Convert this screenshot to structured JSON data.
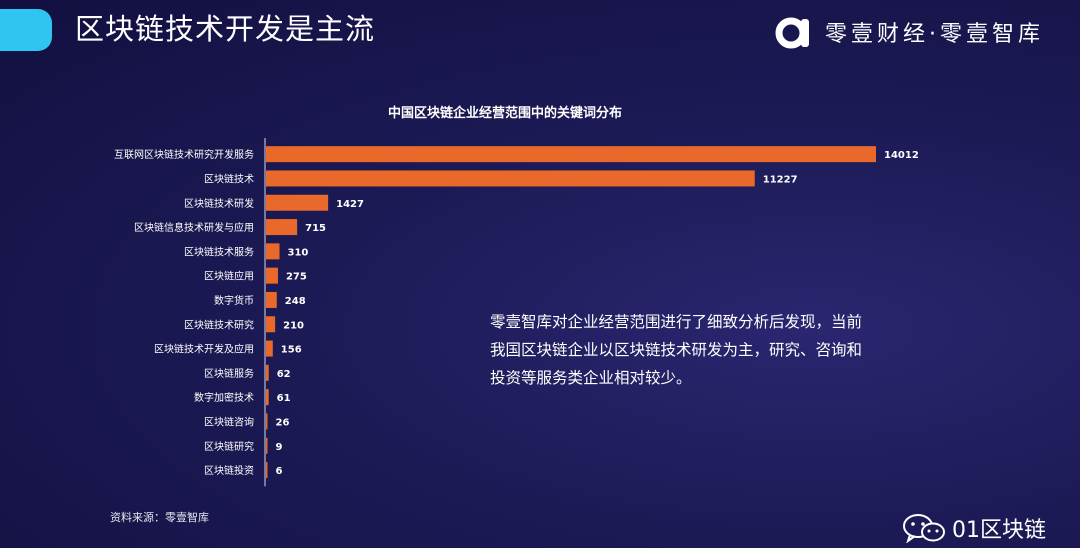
{
  "header": {
    "title": "区块链技术开发是主流",
    "brand": "零壹财经·零壹智库"
  },
  "chart_data": {
    "type": "bar",
    "orientation": "horizontal",
    "title": "中国区块链企业经营范围中的关键词分布",
    "categories": [
      "互联网区块链技术研究开发服务",
      "区块链技术",
      "区块链技术研发",
      "区块链信息技术研发与应用",
      "区块链技术服务",
      "区块链应用",
      "数字货币",
      "区块链技术研究",
      "区块链技术开发及应用",
      "区块链服务",
      "数字加密技术",
      "区块链咨询",
      "区块链研究",
      "区块链投资"
    ],
    "values": [
      14012,
      11227,
      1427,
      715,
      310,
      275,
      248,
      210,
      156,
      62,
      61,
      26,
      9,
      6
    ],
    "bar_color": "#e8692a",
    "grid": false,
    "legend": "none"
  },
  "note": {
    "lines": [
      "零壹智库对企业经营范围进行了细致分析后发现，当前",
      "我国区块链企业以区块链技术研发为主，研究、咨询和",
      "投资等服务类企业相对较少。"
    ]
  },
  "footer": {
    "source": "资料来源：零壹智库",
    "watermark": "01区块链"
  },
  "colors": {
    "accent": "#2ec6f0",
    "bar": "#e8692a",
    "background": "#1c1a55"
  },
  "icons": {
    "brand_logo": "a-logo-icon",
    "watermark": "wechat-icon"
  }
}
